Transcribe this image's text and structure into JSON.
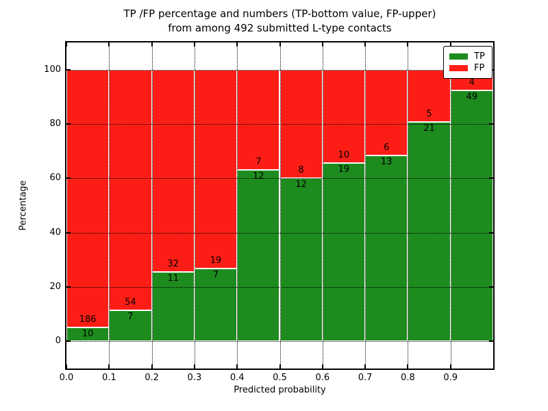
{
  "chart_data": {
    "type": "bar",
    "stacking": "percent",
    "title_lines": [
      "TP /FP percentage and numbers (TP-bottom value, FP-upper)",
      "from among 492 submitted L-type contacts"
    ],
    "xlabel": "Predicted probability",
    "ylabel": "Percentage",
    "xlim": [
      0.0,
      1.0
    ],
    "ylim": [
      -10,
      110
    ],
    "bin_width": 0.1,
    "categories": [
      "0.0-0.1",
      "0.1-0.2",
      "0.2-0.3",
      "0.3-0.4",
      "0.4-0.5",
      "0.5-0.6",
      "0.6-0.7",
      "0.7-0.8",
      "0.8-0.9",
      "0.9-1.0"
    ],
    "xtick_labels": [
      "0.0",
      "0.1",
      "0.2",
      "0.3",
      "0.4",
      "0.5",
      "0.6",
      "0.7",
      "0.8",
      "0.9"
    ],
    "ytick_labels": [
      "0",
      "20",
      "40",
      "60",
      "80",
      "100"
    ],
    "series": [
      {
        "name": "TP",
        "color": "#1e8b1e",
        "values": [
          10,
          7,
          11,
          7,
          12,
          12,
          19,
          13,
          21,
          49
        ]
      },
      {
        "name": "FP",
        "color": "#fc1e16",
        "values": [
          186,
          54,
          32,
          19,
          7,
          8,
          10,
          6,
          5,
          4
        ]
      }
    ],
    "tp_percent": [
      5.1,
      11.48,
      25.58,
      26.92,
      63.16,
      60.0,
      65.52,
      68.42,
      80.77,
      92.45
    ],
    "total_contacts": 492,
    "legend": {
      "position": "upper right",
      "entries": [
        "TP",
        "FP"
      ]
    },
    "grid": true,
    "grid_style": "dotted",
    "axis_color": "#000000",
    "background_color": "#ffffff",
    "bar_edge_color": "#ffffff"
  }
}
